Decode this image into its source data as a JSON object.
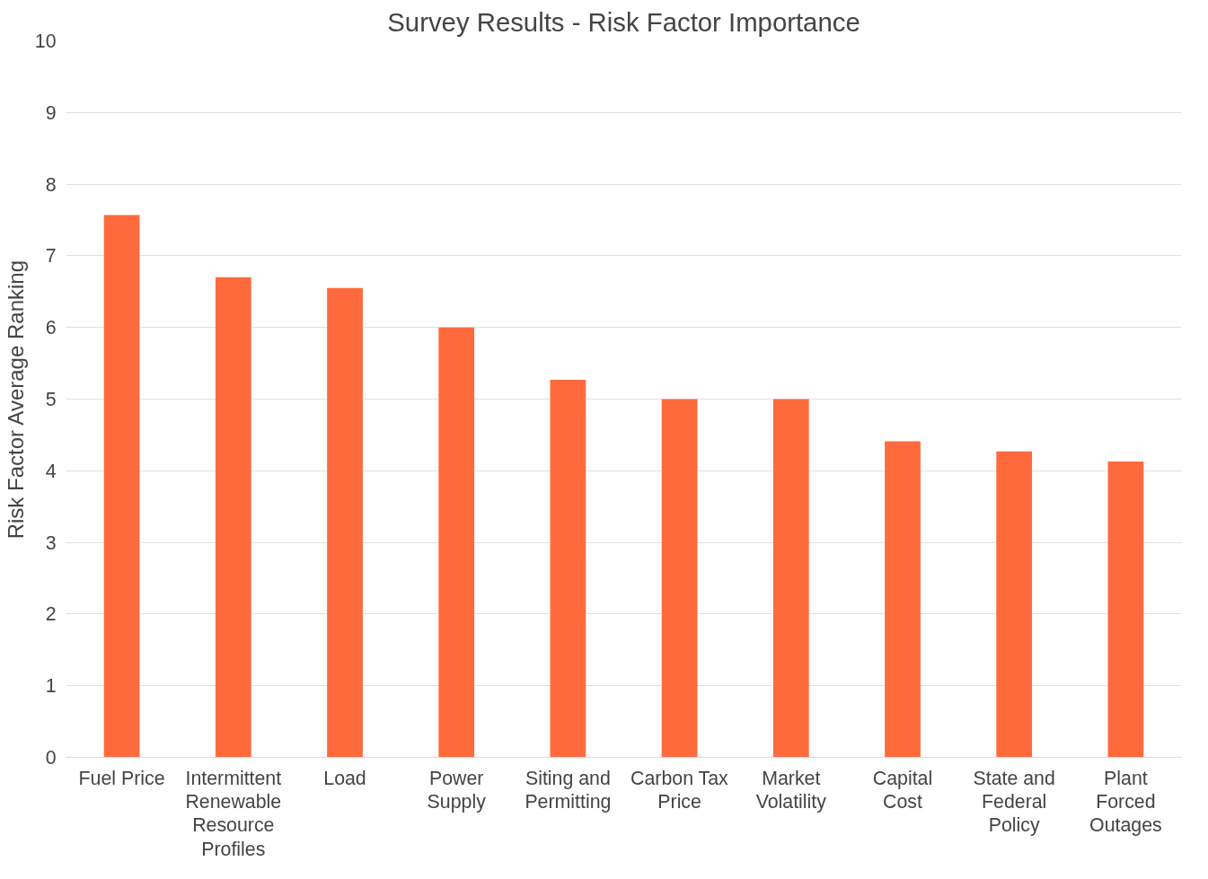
{
  "chart_data": {
    "type": "bar",
    "title": "Survey Results - Risk Factor Importance",
    "ylabel": "Risk Factor Average Ranking",
    "categories": [
      "Fuel Price",
      "Intermittent Renewable Resource Profiles",
      "Load",
      "Power Supply",
      "Siting and Permitting",
      "Carbon Tax Price",
      "Market Volatility",
      "Capital Cost",
      "State and Federal Policy",
      "Plant Forced Outages"
    ],
    "values": [
      7.57,
      6.7,
      6.55,
      6.0,
      5.27,
      5.0,
      5.0,
      4.41,
      4.27,
      4.13
    ],
    "color": "#ff6a3d",
    "ylim": [
      0,
      10
    ],
    "yticks": [
      0,
      1,
      2,
      3,
      4,
      5,
      6,
      7,
      8,
      9,
      10
    ],
    "grid": "y"
  }
}
